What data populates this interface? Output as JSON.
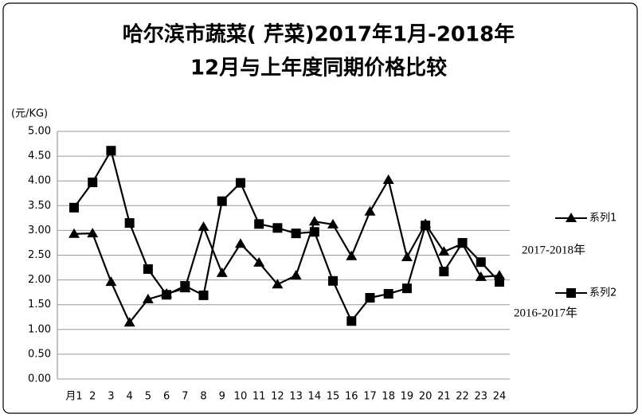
{
  "chart_data": {
    "type": "line",
    "title": [
      "哈尔滨市蔬菜( 芹菜)2017年1月-2018年",
      "12月与上年度同期价格比较"
    ],
    "y_label": "(元/KG)",
    "categories": [
      "月1",
      "2",
      "3",
      "4",
      "5",
      "6",
      "7",
      "8",
      "9",
      "10",
      "11",
      "12",
      "13",
      "14",
      "15",
      "16",
      "17",
      "18",
      "19",
      "20",
      "21",
      "22",
      "23",
      "24"
    ],
    "series": [
      {
        "name": "系列1",
        "color": "#000000",
        "marker": "triangle",
        "values": [
          2.93,
          2.94,
          1.96,
          1.14,
          1.61,
          1.72,
          1.83,
          3.07,
          2.14,
          2.73,
          2.35,
          1.91,
          2.09,
          3.18,
          3.12,
          2.48,
          3.38,
          4.02,
          2.46,
          3.13,
          2.57,
          2.73,
          2.06,
          2.09
        ]
      },
      {
        "name": "系列2",
        "color": "#000000",
        "marker": "square",
        "values": [
          3.46,
          3.97,
          4.61,
          3.15,
          2.22,
          1.7,
          1.88,
          1.69,
          3.59,
          3.96,
          3.13,
          3.05,
          2.94,
          2.97,
          1.98,
          1.17,
          1.64,
          1.72,
          1.83,
          3.1,
          2.17,
          2.75,
          2.36,
          1.96
        ]
      }
    ],
    "annotations": [
      "2017-2018年",
      "2016-2017年"
    ],
    "ylim": [
      0,
      5
    ],
    "yticks": [
      {
        "value": 0,
        "label": "0.00"
      },
      {
        "value": 0.5,
        "label": "0.50"
      },
      {
        "value": 1,
        "label": "1.00"
      },
      {
        "value": 1.5,
        "label": "1.50"
      },
      {
        "value": 2,
        "label": "2.00"
      },
      {
        "value": 2.5,
        "label": "2.50"
      },
      {
        "value": 3,
        "label": "3.00"
      },
      {
        "value": 3.5,
        "label": "3.50"
      },
      {
        "value": 4,
        "label": "4.00"
      },
      {
        "value": 4.5,
        "label": "4.50"
      },
      {
        "value": 5,
        "label": "5.00"
      }
    ],
    "grid": true
  }
}
